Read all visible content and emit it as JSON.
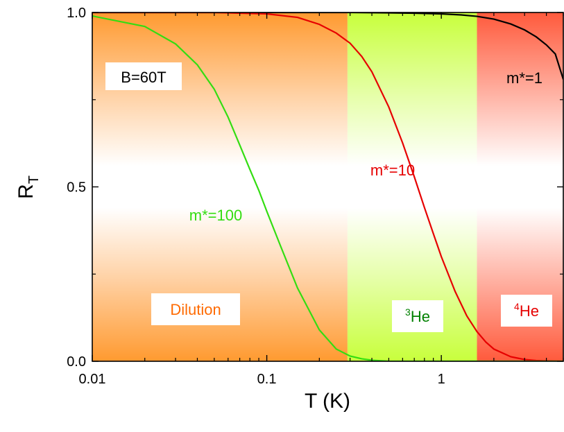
{
  "chart_data": {
    "type": "line",
    "x_scale": "log",
    "xlim": [
      0.01,
      5
    ],
    "ylim": [
      0.0,
      1.0
    ],
    "xlabel": "T (K)",
    "ylabel": {
      "main": "R",
      "sub": "T"
    },
    "x_ticks": [
      {
        "value": 0.01,
        "label": "0.01"
      },
      {
        "value": 0.1,
        "label": "0.1"
      },
      {
        "value": 1,
        "label": "1"
      }
    ],
    "y_ticks": [
      {
        "value": 0.0,
        "label": "0.0"
      },
      {
        "value": 0.5,
        "label": "0.5"
      },
      {
        "value": 1.0,
        "label": "1.0"
      }
    ],
    "field_label": "B=60T",
    "regions": [
      {
        "name": "Dilution",
        "x_range": [
          0.01,
          0.29
        ],
        "color": "#ff9a30",
        "label_color": "#ff6a00"
      },
      {
        "name": "He",
        "superscript": "3",
        "x_range": [
          0.29,
          1.6
        ],
        "color": "#c8ff3c",
        "label_color": "#008000"
      },
      {
        "name": "He",
        "superscript": "4",
        "x_range": [
          1.6,
          5
        ],
        "color": "#ff5a3c",
        "label_color": "#e60000"
      }
    ],
    "series": [
      {
        "name": "m*=1",
        "color": "#000000",
        "x": [
          0.01,
          0.1,
          0.3,
          0.5,
          0.7,
          1.0,
          1.3,
          1.6,
          2.0,
          2.5,
          3.0,
          3.5,
          4.0,
          4.5,
          5.0
        ],
        "y": [
          1.0,
          1.0,
          1.0,
          0.999,
          0.998,
          0.996,
          0.993,
          0.989,
          0.981,
          0.967,
          0.95,
          0.93,
          0.907,
          0.881,
          0.808
        ]
      },
      {
        "name": "m*=10",
        "color": "#e60000",
        "x": [
          0.01,
          0.05,
          0.1,
          0.15,
          0.2,
          0.25,
          0.3,
          0.35,
          0.4,
          0.5,
          0.6,
          0.7,
          0.8,
          0.9,
          1.0,
          1.2,
          1.4,
          1.6,
          1.8,
          2.0,
          2.5,
          3.0,
          3.5,
          4.0,
          5.0
        ],
        "y": [
          1.0,
          1.0,
          0.996,
          0.986,
          0.966,
          0.941,
          0.912,
          0.874,
          0.83,
          0.729,
          0.626,
          0.529,
          0.441,
          0.366,
          0.3,
          0.2,
          0.13,
          0.085,
          0.055,
          0.035,
          0.013,
          0.005,
          0.002,
          0.001,
          0.0
        ]
      },
      {
        "name": "m*=100",
        "color": "#33dd11",
        "x": [
          0.01,
          0.02,
          0.03,
          0.04,
          0.05,
          0.06,
          0.07,
          0.08,
          0.09,
          0.1,
          0.12,
          0.15,
          0.2,
          0.25,
          0.3,
          0.35,
          0.4,
          0.5,
          1.0,
          5.0
        ],
        "y": [
          0.99,
          0.96,
          0.91,
          0.85,
          0.78,
          0.7,
          0.62,
          0.55,
          0.49,
          0.43,
          0.33,
          0.21,
          0.09,
          0.035,
          0.015,
          0.007,
          0.003,
          0.0,
          0.0,
          0.0
        ]
      }
    ],
    "series_labels": [
      {
        "text": "m*=1",
        "color": "#000000"
      },
      {
        "text": "m*=10",
        "color": "#e60000"
      },
      {
        "text": "m*=100",
        "color": "#33dd11"
      }
    ]
  }
}
